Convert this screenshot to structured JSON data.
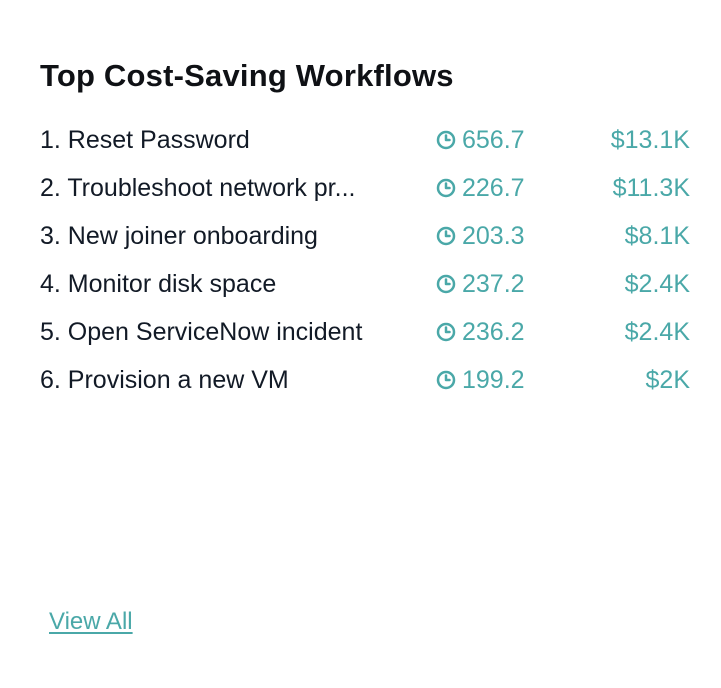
{
  "widget": {
    "title": "Top Cost-Saving Workflows",
    "view_all_label": "View All"
  },
  "workflows": [
    {
      "name": "1. Reset Password",
      "time": "656.7",
      "cost": "$13.1K"
    },
    {
      "name": "2. Troubleshoot network pr...",
      "time": "226.7",
      "cost": "$11.3K"
    },
    {
      "name": "3. New joiner onboarding",
      "time": "203.3",
      "cost": "$8.1K"
    },
    {
      "name": "4. Monitor disk space",
      "time": "237.2",
      "cost": "$2.4K"
    },
    {
      "name": "5. Open ServiceNow incident",
      "time": "236.2",
      "cost": "$2.4K"
    },
    {
      "name": "6. Provision a new VM",
      "time": "199.2",
      "cost": "$2K"
    }
  ],
  "icons": {
    "time": "clock-icon"
  },
  "colors": {
    "accent": "#4aa8a8",
    "text": "#121a26"
  }
}
